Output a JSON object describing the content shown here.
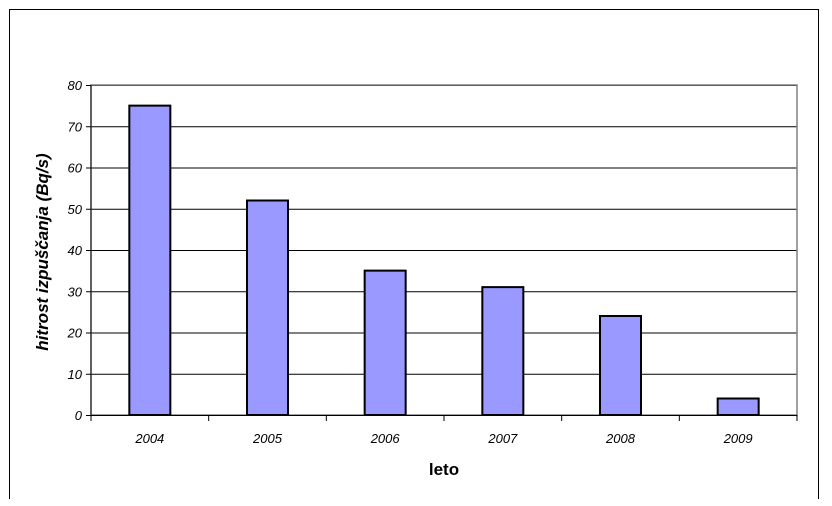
{
  "chart_data": {
    "type": "bar",
    "title": "",
    "xlabel": "leto",
    "ylabel": "hitrost izpuščanja (Bq/s)",
    "categories": [
      "2004",
      "2005",
      "2006",
      "2007",
      "2008",
      "2009"
    ],
    "values": [
      75,
      52,
      35,
      31,
      24,
      4
    ],
    "ylim": [
      0,
      80
    ],
    "yticks": [
      "0",
      "10",
      "20",
      "30",
      "40",
      "50",
      "60",
      "70",
      "80"
    ],
    "grid": true,
    "legend": "none",
    "colors": {
      "bar_fill": "#9999FF",
      "bar_stroke": "#000000",
      "plot_background": "#FFFFFF",
      "plot_border": "#808080",
      "gridline": "#000000"
    }
  }
}
